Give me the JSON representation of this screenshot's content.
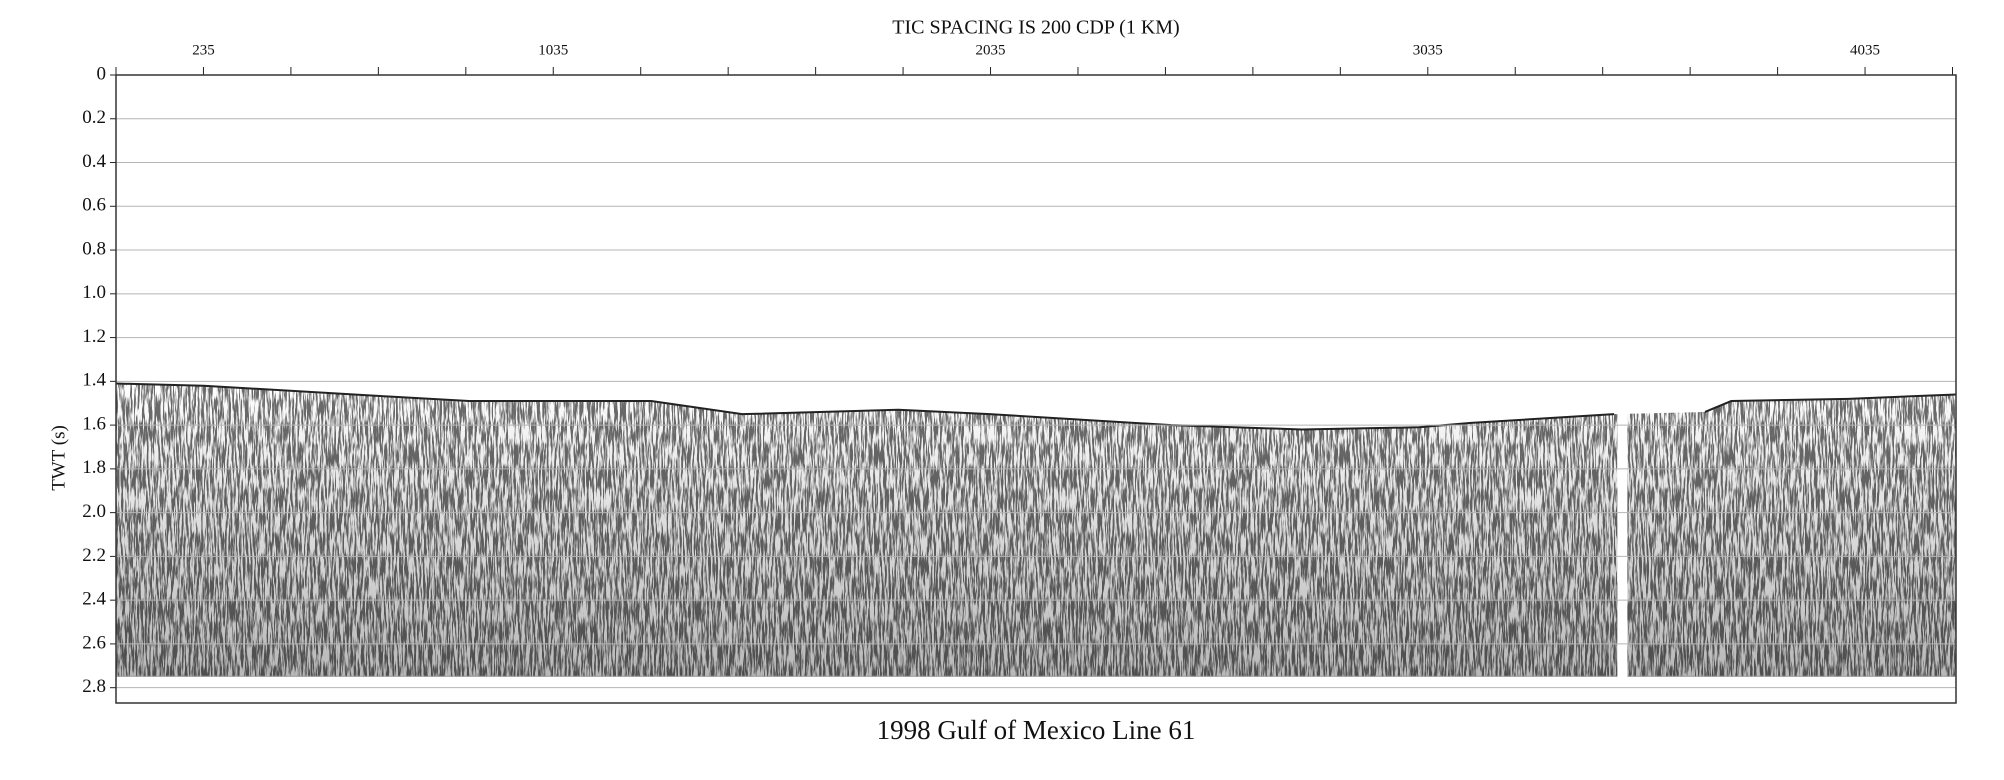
{
  "chart_data": {
    "type": "seismic",
    "title": "TIC SPACING IS 200 CDP (1 KM)",
    "caption": "1998 Gulf of Mexico Line 61",
    "ylabel": "TWT (s)",
    "x": [
      35,
      235,
      664,
      842,
      1259,
      1467,
      1824,
      2033,
      2449,
      2747,
      3015,
      3134,
      3461,
      3480,
      3669,
      3729,
      3997,
      4243
    ],
    "values": [
      1.41,
      1.42,
      1.47,
      1.49,
      1.49,
      1.55,
      1.53,
      1.55,
      1.6,
      1.62,
      1.61,
      1.59,
      1.55,
      null,
      1.54,
      1.49,
      1.48,
      1.46
    ],
    "record_end": 2.75,
    "xlim": [
      35,
      4243
    ],
    "xticks": [
      235,
      1035,
      2035,
      3035,
      4035
    ],
    "minor_xticks": [
      35,
      435,
      635,
      835,
      1235,
      1435,
      1635,
      1835,
      2235,
      2435,
      2635,
      2835,
      3235,
      3435,
      3635,
      3835,
      4235
    ],
    "ylim": [
      0,
      2.87
    ],
    "yticks": [
      0,
      {
        "value": 0.2,
        "label": "0.2"
      },
      {
        "value": 0.4,
        "label": "0.4"
      },
      {
        "value": 0.6,
        "label": "0.6"
      },
      {
        "value": 0.8,
        "label": "0.8"
      },
      {
        "value": 1.0,
        "label": "1.0"
      },
      {
        "value": 1.2,
        "label": "1.2"
      },
      {
        "value": 1.4,
        "label": "1.4"
      },
      {
        "value": 1.6,
        "label": "1.6"
      },
      {
        "value": 1.8,
        "label": "1.8"
      },
      {
        "value": 2.0,
        "label": "2.0"
      },
      {
        "value": 2.2,
        "label": "2.2"
      },
      {
        "value": 2.4,
        "label": "2.4"
      },
      {
        "value": 2.6,
        "label": "2.6"
      },
      {
        "value": 2.8,
        "label": "2.8"
      }
    ],
    "grid": true,
    "invert_y": true,
    "color": "#222222"
  }
}
